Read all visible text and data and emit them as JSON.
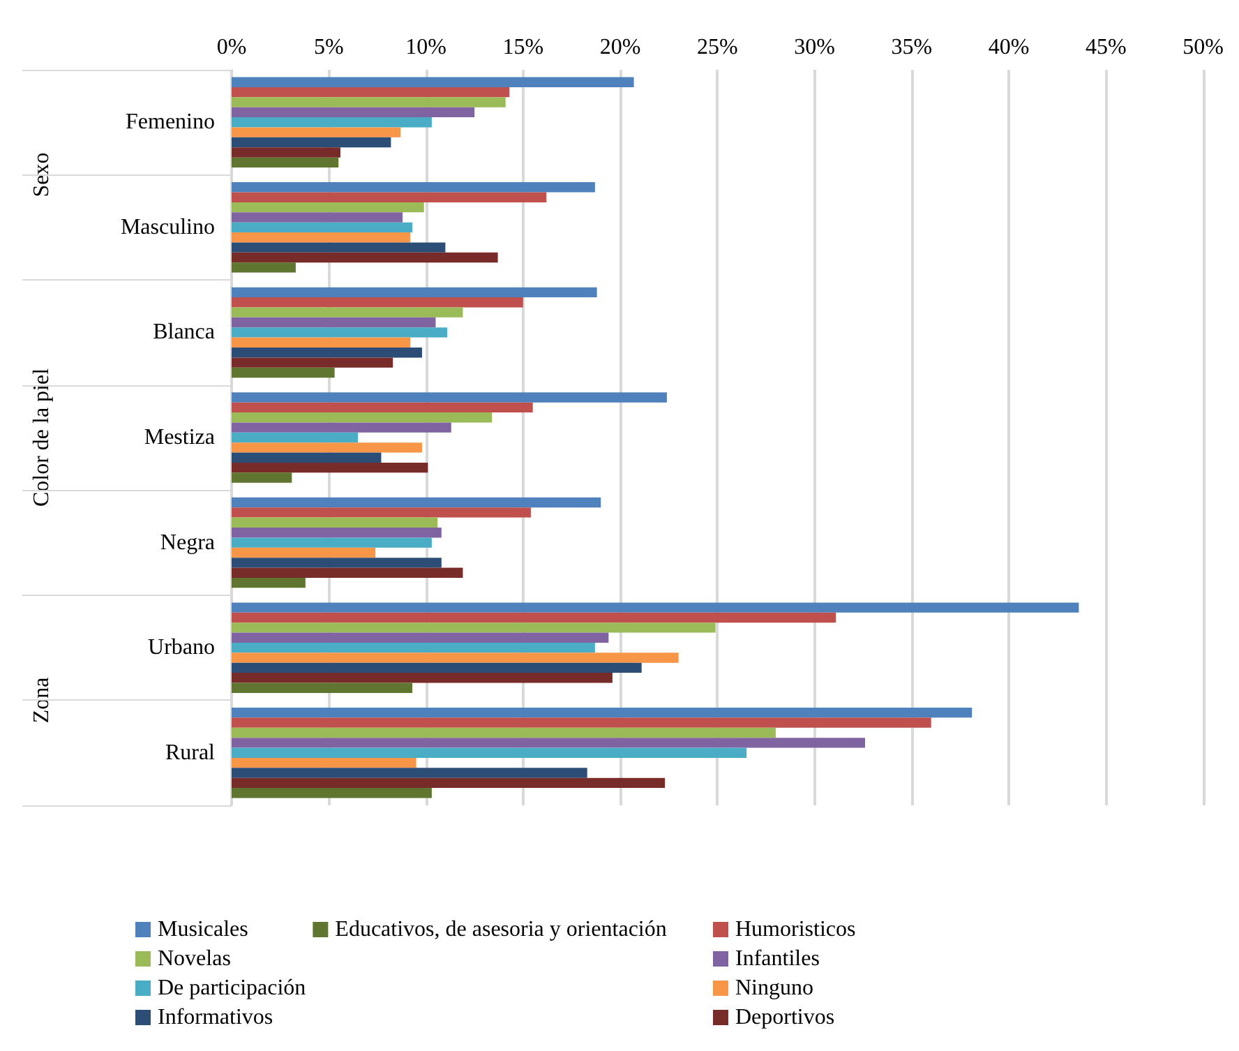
{
  "chart_data": {
    "type": "bar",
    "orientation": "horizontal",
    "categories": [
      "Femenino",
      "Masculino",
      "Blanca",
      "Mestiza",
      "Negra",
      "Urbano",
      "Rural"
    ],
    "annotations": [
      "Sexo",
      "Color de la piel",
      "Zona"
    ],
    "xlim": [
      0,
      50
    ],
    "xticks": [
      {
        "value": 0,
        "label": "0%"
      },
      {
        "value": 5,
        "label": "5%"
      },
      {
        "value": 10,
        "label": "10%"
      },
      {
        "value": 15,
        "label": "15%"
      },
      {
        "value": 20,
        "label": "20%"
      },
      {
        "value": 25,
        "label": "25%"
      },
      {
        "value": 30,
        "label": "30%"
      },
      {
        "value": 35,
        "label": "35%"
      },
      {
        "value": 40,
        "label": "40%"
      },
      {
        "value": 45,
        "label": "45%"
      },
      {
        "value": 50,
        "label": "50%"
      }
    ],
    "grid": "x",
    "legend": "bottom",
    "series": [
      {
        "name": "Musicales",
        "color": "#4f81bd",
        "values": [
          20.7,
          18.7,
          18.8,
          22.4,
          19.0,
          43.6,
          38.1
        ]
      },
      {
        "name": "Humoristicos",
        "color": "#c0504d",
        "values": [
          14.3,
          16.2,
          15.0,
          15.5,
          15.4,
          31.1,
          36.0
        ]
      },
      {
        "name": "Novelas",
        "color": "#9bbb59",
        "values": [
          14.1,
          9.9,
          11.9,
          13.4,
          10.6,
          24.9,
          28.0
        ]
      },
      {
        "name": "Infantiles",
        "color": "#8064a2",
        "values": [
          12.5,
          8.8,
          10.5,
          11.3,
          10.8,
          19.4,
          32.6
        ]
      },
      {
        "name": "De participación",
        "color": "#4bacc6",
        "values": [
          10.3,
          9.3,
          11.1,
          6.5,
          10.3,
          18.7,
          26.5
        ]
      },
      {
        "name": "Ninguno",
        "color": "#f79646",
        "values": [
          8.7,
          9.2,
          9.2,
          9.8,
          7.4,
          23.0,
          9.5
        ]
      },
      {
        "name": "Informativos",
        "color": "#2c4d75",
        "values": [
          8.2,
          11.0,
          9.8,
          7.7,
          10.8,
          21.1,
          18.3
        ]
      },
      {
        "name": "Deportivos",
        "color": "#772c2a",
        "values": [
          5.6,
          13.7,
          8.3,
          10.1,
          11.9,
          19.6,
          22.3
        ]
      },
      {
        "name": "Educativos, de asesoria y orientación",
        "color": "#5f7530",
        "values": [
          5.5,
          3.3,
          5.3,
          3.1,
          3.8,
          9.3,
          10.3
        ]
      }
    ]
  }
}
